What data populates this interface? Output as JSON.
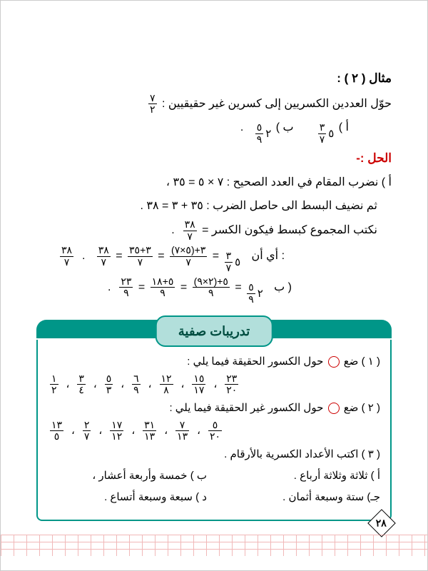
{
  "example_title": "مثال ( ٢ ) :",
  "example_prompt": "حوّل العددين الكسريين إلى كسرين غير حقيقيين :",
  "example_frac": {
    "num": "٧",
    "den": "٢"
  },
  "item_a_label": "أ )",
  "item_a_whole": "٥",
  "item_a_frac": {
    "num": "٣",
    "den": "٧"
  },
  "item_b_label": "ب )",
  "item_b_whole": "٢",
  "item_b_frac": {
    "num": "٥",
    "den": "٩"
  },
  "period": ".",
  "solution_label": "الحل :-",
  "step_a1": "أ ) نضرب المقام في العدد الصحيح : ٧ × ٥ = ٣٥  ،",
  "step_a2": "ثم نضيف البسط الى حاصل الضرب : ٣٥ + ٣ = ٣٨  .",
  "step_a3_text": "نكتب المجموع كبسط فيكون الكسر =",
  "step_a3_frac": {
    "num": "٣٨",
    "den": "٧"
  },
  "that_is": "أي أن :",
  "eq_a_parts": [
    {
      "whole": "٥",
      "num": "٣",
      "den": "٧"
    },
    {
      "num": "٣+(٥×٧)",
      "den": "٧"
    },
    {
      "num": "٣+٣٥",
      "den": "٧"
    },
    {
      "num": "٣٨",
      "den": "٧"
    }
  ],
  "final_a": {
    "num": "٣٨",
    "den": "٧"
  },
  "item_b2_label": "ب )",
  "eq_b_parts": [
    {
      "whole": "٢",
      "num": "٥",
      "den": "٩"
    },
    {
      "num": "٥+(٢×٩)",
      "den": "٩"
    },
    {
      "num": "٥+١٨",
      "den": "٩"
    },
    {
      "num": "٢٣",
      "den": "٩"
    }
  ],
  "banner_text": "تدريبات صفية",
  "ex1_text_a": "( ١ ) ضع",
  "ex1_text_b": "حول الكسور الحقيقة فيما يلي :",
  "ex1_fracs": [
    {
      "num": "١",
      "den": "٢"
    },
    {
      "num": "٣",
      "den": "٤"
    },
    {
      "num": "٥",
      "den": "٣"
    },
    {
      "num": "٦",
      "den": "٩"
    },
    {
      "num": "١٢",
      "den": "٨"
    },
    {
      "num": "١٥",
      "den": "١٧"
    },
    {
      "num": "٢٣",
      "den": "٢٠"
    }
  ],
  "ex2_text_a": "( ٢ ) ضع",
  "ex2_text_b": "حول الكسور غير الحقيقة فيما يلي :",
  "ex2_fracs": [
    {
      "num": "١٣",
      "den": "٥"
    },
    {
      "num": "٢",
      "den": "٧"
    },
    {
      "num": "١٧",
      "den": "١٢"
    },
    {
      "num": "٣١",
      "den": "١٣"
    },
    {
      "num": "٧",
      "den": "١٣"
    },
    {
      "num": "٥",
      "den": "٢٠"
    }
  ],
  "ex3_text": "( ٣ ) اكتب الأعداد الكسرية بالأرقام .",
  "ex3_a": "أ  ) ثلاثة وثلاثة أرباع .",
  "ex3_b": "ب ) خمسة وأربعة أعشار ،",
  "ex3_c": "جـ) ستة وسبعة أثمان .",
  "ex3_d": "د  ) سبعة وسبعة أتساع .",
  "page_num": "٢٨",
  "sep": "  ،  ",
  "eq": " = ",
  "colors": {
    "teal": "#009688",
    "teal_light": "#b2dfdb",
    "red": "#cc0000",
    "grid": "#e57373"
  }
}
